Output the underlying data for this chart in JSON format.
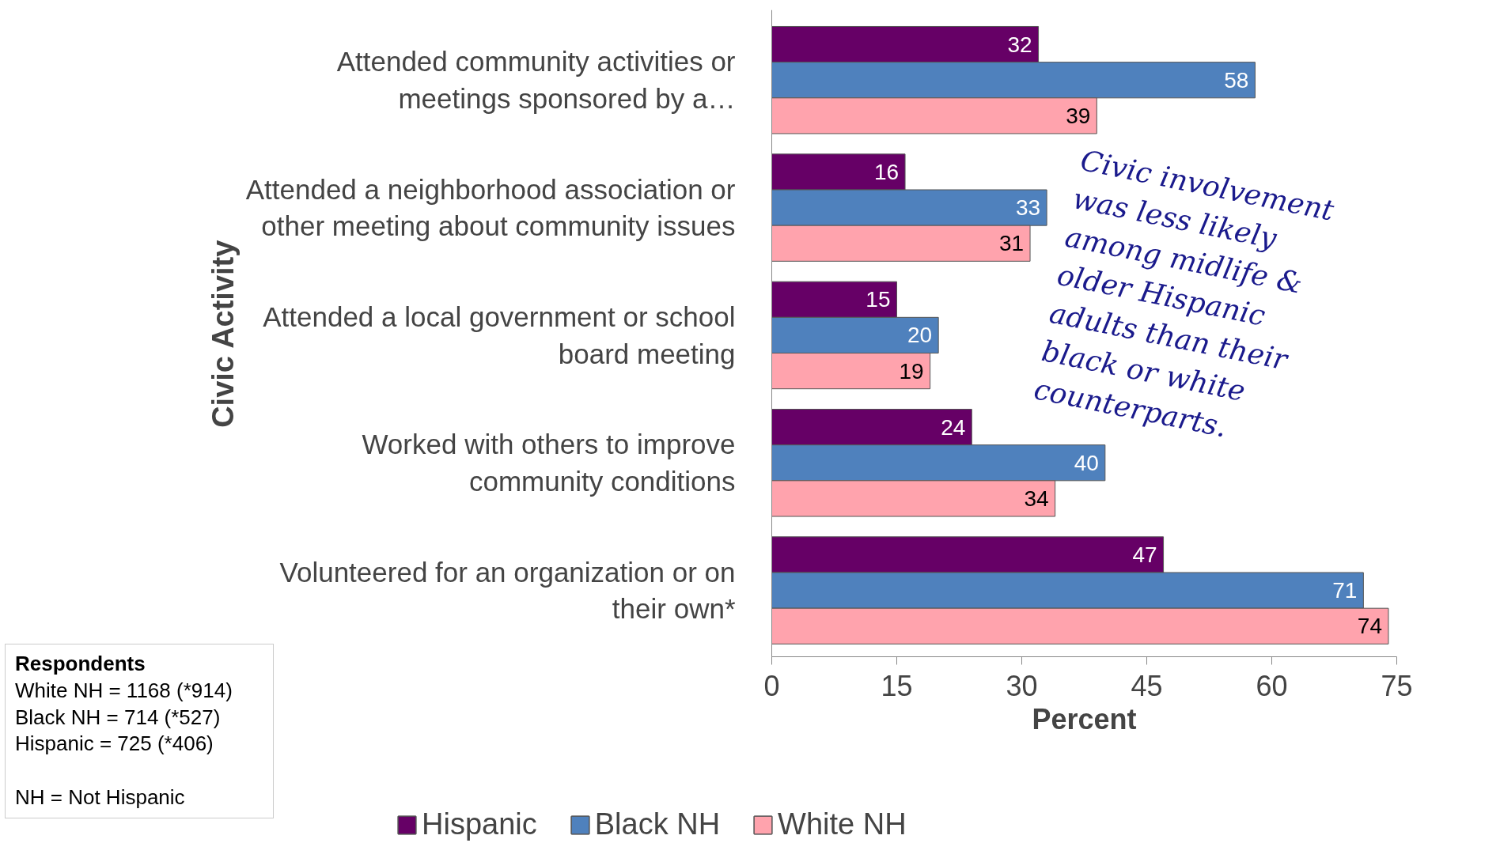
{
  "chart_data": {
    "type": "bar",
    "orientation": "horizontal",
    "categories": [
      "Attended community activities or meetings sponsored by a…",
      "Attended a neighborhood association or other meeting about community issues",
      "Attended a local government or school board meeting",
      "Worked with others to improve community conditions",
      "Volunteered for an organization or on their own*"
    ],
    "series": [
      {
        "name": "Hispanic",
        "color": "#660066",
        "values": [
          32,
          16,
          15,
          24,
          47
        ]
      },
      {
        "name": "Black NH",
        "color": "#4f81bd",
        "values": [
          58,
          33,
          20,
          40,
          71
        ]
      },
      {
        "name": "White NH",
        "color": "#ffa3ad",
        "values": [
          39,
          31,
          19,
          34,
          74
        ]
      }
    ],
    "xlim": [
      0,
      75
    ],
    "xticks": [
      0,
      15,
      30,
      45,
      60,
      75
    ],
    "xlabel": "Percent",
    "ylabel": "Civic Activity",
    "data_labels": true,
    "grid": false,
    "legend": "bottom",
    "annotations": [
      "Civic involvement was less likely among midlife & older Hispanic adults than their black or white counterparts.",
      "Respondents\nWhite NH = 1168 (*914)\nBlack NH = 714 (*527)\nHispanic = 725 (*406)\n\nNH = Not Hispanic"
    ]
  }
}
